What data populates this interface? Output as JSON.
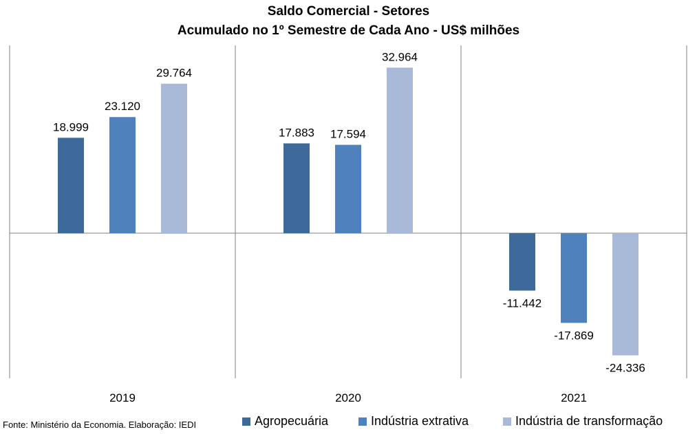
{
  "title": "Saldo Comercial - Setores",
  "subtitle": "Acumulado no 1º Semestre de Cada Ano - US$ milhões",
  "source": "Fonte: Ministério da Economia. Elaboração: IEDI",
  "colors": {
    "agro": "#3e6a9b",
    "extrativa": "#4f81bd",
    "transformacao": "#a9b9d8",
    "axis": "#7f7f7f"
  },
  "chart_data": {
    "type": "bar",
    "categories": [
      "2019",
      "2020",
      "2021"
    ],
    "series": [
      {
        "name": "Agropecuária",
        "values": [
          18999,
          17883,
          -11442
        ],
        "labels": [
          "18.999",
          "17.883",
          "-11.442"
        ]
      },
      {
        "name": "Indústria extrativa",
        "values": [
          23120,
          17594,
          -17869
        ],
        "labels": [
          "23.120",
          "17.594",
          "-17.869"
        ]
      },
      {
        "name": "Indústria de transformação",
        "values": [
          29764,
          32964,
          -24336
        ],
        "labels": [
          "29.764",
          "32.964",
          "-24.336"
        ]
      }
    ],
    "ylim": [
      -28000,
      37000
    ],
    "grid": false,
    "legend": "bottom"
  }
}
